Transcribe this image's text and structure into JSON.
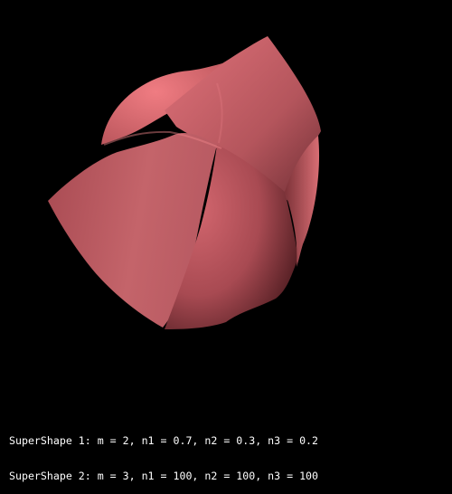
{
  "scene": {
    "background_color": "#000000",
    "shape_color": "#d2666c",
    "text_color": "#ffffff"
  },
  "superformula": {
    "shape1": {
      "label": "SuperShape 1: m = 2, n1 = 0.7, n2 = 0.3, n3 = 0.2",
      "m": 2,
      "n1": 0.7,
      "n2": 0.3,
      "n3": 0.2
    },
    "shape2": {
      "label": "SuperShape 2: m = 3, n1 = 100, n2 = 100, n3 = 100",
      "m": 3,
      "n1": 100,
      "n2": 100,
      "n3": 100
    }
  }
}
